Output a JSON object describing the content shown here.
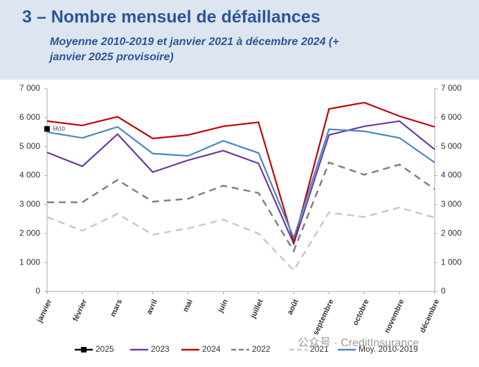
{
  "title": "3 – Nombre mensuel de défaillances",
  "subtitle": "Moyenne 2010-2019 et janvier 2021 à décembre 2024 (+ janvier 2025 provisoire)",
  "watermark": "公众号 · CreditInsurance",
  "chart_data": {
    "type": "line",
    "categories": [
      "janvier",
      "février",
      "mars",
      "avril",
      "mai",
      "juin",
      "juillet",
      "août",
      "septembre",
      "octobre",
      "novembre",
      "décembre"
    ],
    "ylim": [
      0,
      7000
    ],
    "yticks": [
      {
        "value": 0,
        "label": "0"
      },
      {
        "value": 1000,
        "label": "1 000"
      },
      {
        "value": 2000,
        "label": "2 000"
      },
      {
        "value": 3000,
        "label": "3 000"
      },
      {
        "value": 4000,
        "label": "4 000"
      },
      {
        "value": 5000,
        "label": "5 000"
      },
      {
        "value": 6000,
        "label": "6 000"
      },
      {
        "value": 7000,
        "label": "7 000"
      }
    ],
    "y2lim": [
      0,
      7000
    ],
    "y2ticks": [
      {
        "value": 0,
        "label": "0"
      },
      {
        "value": 1000,
        "label": "1 000"
      },
      {
        "value": 2000,
        "label": "2 000"
      },
      {
        "value": 3000,
        "label": "3 000"
      },
      {
        "value": 4000,
        "label": "4 000"
      },
      {
        "value": 5000,
        "label": "5 000"
      },
      {
        "value": 6000,
        "label": "6 000"
      },
      {
        "value": 7000,
        "label": "7 000"
      }
    ],
    "legend": "bottom",
    "series": [
      {
        "name": "2025",
        "color": "#000000",
        "marker": "square",
        "data_labels": true,
        "values": [
          5610,
          null,
          null,
          null,
          null,
          null,
          null,
          null,
          null,
          null,
          null,
          null
        ]
      },
      {
        "name": "2023",
        "color": "#6a3aa0",
        "values": [
          4800,
          4320,
          5430,
          4120,
          4530,
          4860,
          4420,
          1650,
          5400,
          5700,
          5880,
          4900
        ]
      },
      {
        "name": "2024",
        "color": "#c00000",
        "values": [
          5880,
          5730,
          6030,
          5280,
          5400,
          5700,
          5840,
          1700,
          6300,
          6520,
          6050,
          5680
        ]
      },
      {
        "name": "2022",
        "color": "#808080",
        "dash": true,
        "values": [
          3080,
          3080,
          3850,
          3100,
          3200,
          3650,
          3400,
          1400,
          4450,
          4030,
          4380,
          3530
        ]
      },
      {
        "name": "2021",
        "color": "#c8c8c8",
        "dash": true,
        "values": [
          2570,
          2100,
          2680,
          1960,
          2180,
          2480,
          2000,
          730,
          2730,
          2570,
          2900,
          2550
        ]
      },
      {
        "name": "Moy. 2010-2019",
        "color": "#4a86c0",
        "values": [
          5500,
          5300,
          5680,
          4760,
          4680,
          5200,
          4780,
          1850,
          5600,
          5530,
          5300,
          4450
        ]
      }
    ]
  }
}
